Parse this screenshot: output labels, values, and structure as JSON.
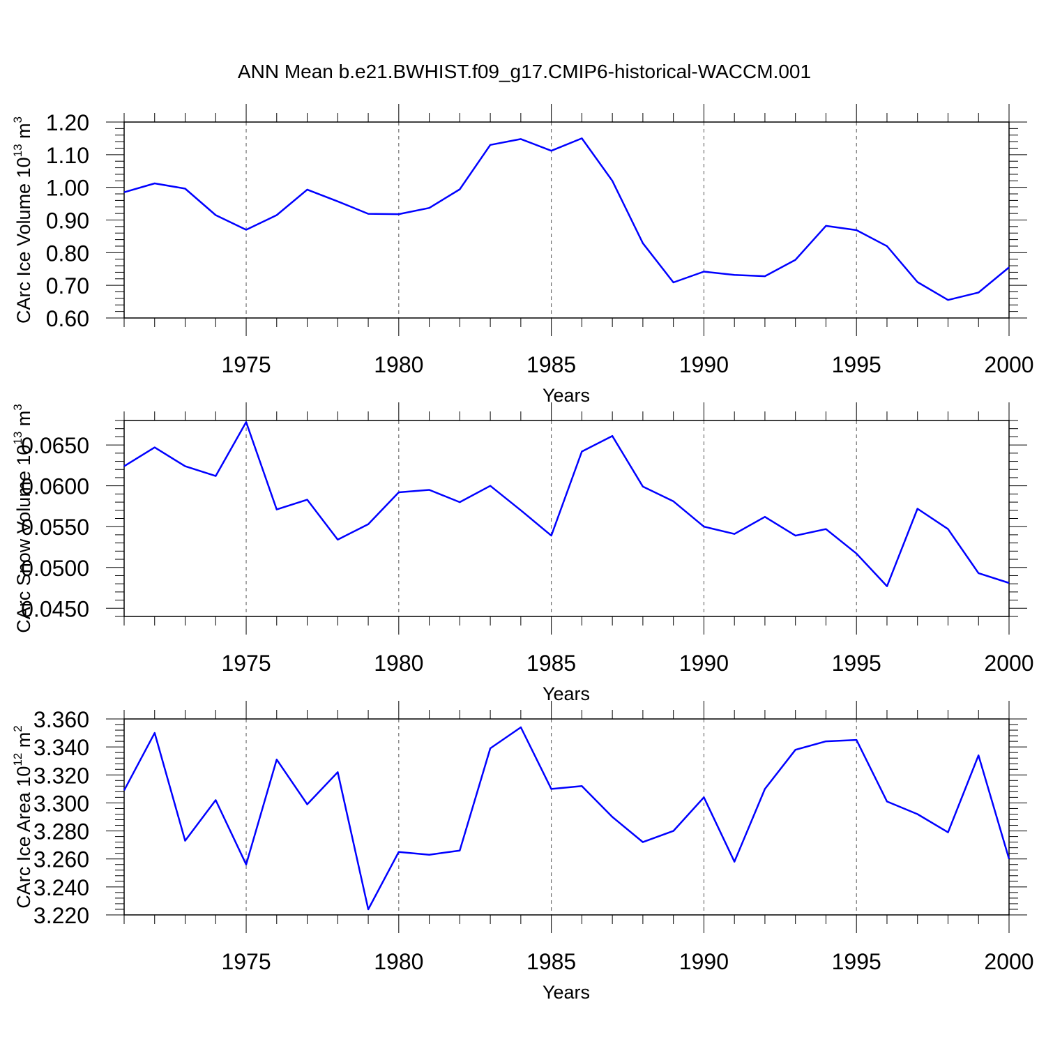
{
  "figure": {
    "title": "ANN Mean b.e21.BWHIST.f09_g17.CMIP6-historical-WACCM.001",
    "line_color": "#0000ff"
  },
  "chart_data": [
    {
      "type": "line",
      "title": "",
      "xlabel": "Years",
      "ylabel": "CArc Ice Volume 10",
      "ylabel_exp": "13",
      "ylabel_unit": " m",
      "ylabel_unit_exp": "3",
      "xlim": [
        1971,
        2000
      ],
      "ylim": [
        0.6,
        1.2
      ],
      "yticks": [
        0.6,
        0.7,
        0.8,
        0.9,
        1.0,
        1.1,
        1.2
      ],
      "ytick_labels": [
        "0.60",
        "0.70",
        "0.80",
        "0.90",
        "1.00",
        "1.10",
        "1.20"
      ],
      "xticks": [
        1975,
        1980,
        1985,
        1990,
        1995,
        2000
      ],
      "xtick_labels": [
        "1975",
        "1980",
        "1985",
        "1990",
        "1995",
        "2000"
      ],
      "x_gridlines": true,
      "x": [
        1971,
        1972,
        1973,
        1974,
        1975,
        1976,
        1977,
        1978,
        1979,
        1980,
        1981,
        1982,
        1983,
        1984,
        1985,
        1986,
        1987,
        1988,
        1989,
        1990,
        1991,
        1992,
        1993,
        1994,
        1995,
        1996,
        1997,
        1998,
        1999,
        2000
      ],
      "values": [
        0.985,
        1.012,
        0.996,
        0.915,
        0.87,
        0.915,
        0.993,
        0.957,
        0.919,
        0.918,
        0.937,
        0.994,
        1.13,
        1.148,
        1.112,
        1.15,
        1.02,
        0.829,
        0.709,
        0.742,
        0.732,
        0.728,
        0.778,
        0.882,
        0.869,
        0.82,
        0.71,
        0.655,
        0.678,
        0.755
      ]
    },
    {
      "type": "line",
      "title": "",
      "xlabel": "Years",
      "ylabel": "CArc Snow Volume 10",
      "ylabel_exp": "13",
      "ylabel_unit": " m",
      "ylabel_unit_exp": "3",
      "xlim": [
        1971,
        2000
      ],
      "ylim": [
        0.044,
        0.068
      ],
      "yticks": [
        0.045,
        0.05,
        0.055,
        0.06,
        0.065
      ],
      "ytick_labels": [
        "0.0450",
        "0.0500",
        "0.0550",
        "0.0600",
        "0.0650"
      ],
      "xticks": [
        1975,
        1980,
        1985,
        1990,
        1995,
        2000
      ],
      "xtick_labels": [
        "1975",
        "1980",
        "1985",
        "1990",
        "1995",
        "2000"
      ],
      "x_gridlines": true,
      "x": [
        1971,
        1972,
        1973,
        1974,
        1975,
        1976,
        1977,
        1978,
        1979,
        1980,
        1981,
        1982,
        1983,
        1984,
        1985,
        1986,
        1987,
        1988,
        1989,
        1990,
        1991,
        1992,
        1993,
        1994,
        1995,
        1996,
        1997,
        1998,
        1999,
        2000
      ],
      "values": [
        0.0624,
        0.0647,
        0.0624,
        0.0612,
        0.0678,
        0.0571,
        0.0583,
        0.0534,
        0.0553,
        0.0592,
        0.0595,
        0.058,
        0.06,
        0.057,
        0.0539,
        0.0642,
        0.0661,
        0.0599,
        0.0581,
        0.055,
        0.0541,
        0.0562,
        0.0539,
        0.0547,
        0.0517,
        0.0477,
        0.0572,
        0.0547,
        0.0493,
        0.0481
      ]
    },
    {
      "type": "line",
      "title": "",
      "xlabel": "Years",
      "ylabel": "CArc Ice Area 10",
      "ylabel_exp": "12",
      "ylabel_unit": " m",
      "ylabel_unit_exp": "2",
      "xlim": [
        1971,
        2000
      ],
      "ylim": [
        3.22,
        3.36
      ],
      "yticks": [
        3.22,
        3.24,
        3.26,
        3.28,
        3.3,
        3.32,
        3.34,
        3.36
      ],
      "ytick_labels": [
        "3.220",
        "3.240",
        "3.260",
        "3.280",
        "3.300",
        "3.320",
        "3.340",
        "3.360"
      ],
      "xticks": [
        1975,
        1980,
        1985,
        1990,
        1995,
        2000
      ],
      "xtick_labels": [
        "1975",
        "1980",
        "1985",
        "1990",
        "1995",
        "2000"
      ],
      "x_gridlines": true,
      "x": [
        1971,
        1972,
        1973,
        1974,
        1975,
        1976,
        1977,
        1978,
        1979,
        1980,
        1981,
        1982,
        1983,
        1984,
        1985,
        1986,
        1987,
        1988,
        1989,
        1990,
        1991,
        1992,
        1993,
        1994,
        1995,
        1996,
        1997,
        1998,
        1999,
        2000
      ],
      "values": [
        3.309,
        3.35,
        3.273,
        3.302,
        3.256,
        3.331,
        3.299,
        3.322,
        3.224,
        3.265,
        3.263,
        3.266,
        3.339,
        3.354,
        3.31,
        3.312,
        3.29,
        3.272,
        3.28,
        3.304,
        3.258,
        3.31,
        3.338,
        3.344,
        3.345,
        3.301,
        3.292,
        3.279,
        3.334,
        3.26
      ]
    }
  ]
}
